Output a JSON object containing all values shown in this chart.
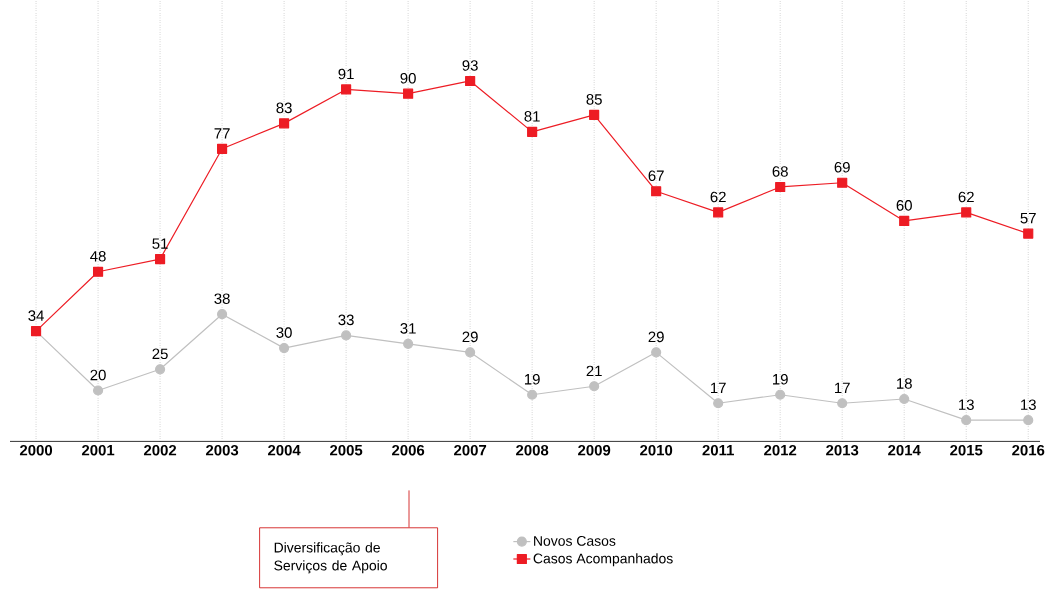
{
  "chart_data": {
    "type": "line",
    "categories": [
      "2000",
      "2001",
      "2002",
      "2003",
      "2004",
      "2005",
      "2006",
      "2007",
      "2008",
      "2009",
      "2010",
      "2011",
      "2012",
      "2013",
      "2014",
      "2015",
      "2016"
    ],
    "series": [
      {
        "name": "Novos Casos",
        "color": "#c0c0c0",
        "marker": "circle",
        "values": [
          34,
          20,
          25,
          38,
          30,
          33,
          31,
          29,
          19,
          21,
          29,
          17,
          19,
          17,
          18,
          13,
          13
        ],
        "value_labels": [
          "34",
          "20",
          "25",
          "38",
          "30",
          "33",
          "31",
          "29",
          "19",
          "21",
          "29",
          "17",
          "19",
          "17",
          "18",
          "13",
          "13"
        ]
      },
      {
        "name": "Casos Acompanhados",
        "color": "#ed1c24",
        "marker": "square",
        "values": [
          34,
          48,
          51,
          77,
          83,
          91,
          90,
          93,
          81,
          85,
          67,
          62,
          68,
          69,
          60,
          62,
          57
        ],
        "value_labels": [
          null,
          "48",
          "51",
          "77",
          "83",
          "91",
          "90",
          "93",
          "81",
          "85",
          "67",
          "62",
          "68",
          "69",
          "60",
          "62",
          "57"
        ]
      }
    ],
    "ylim": [
      8,
      112
    ],
    "tick_labels": "x",
    "grid": "x",
    "legend": "bottom",
    "annotations": [
      "Diversificação de Serviços de Apoio"
    ]
  }
}
